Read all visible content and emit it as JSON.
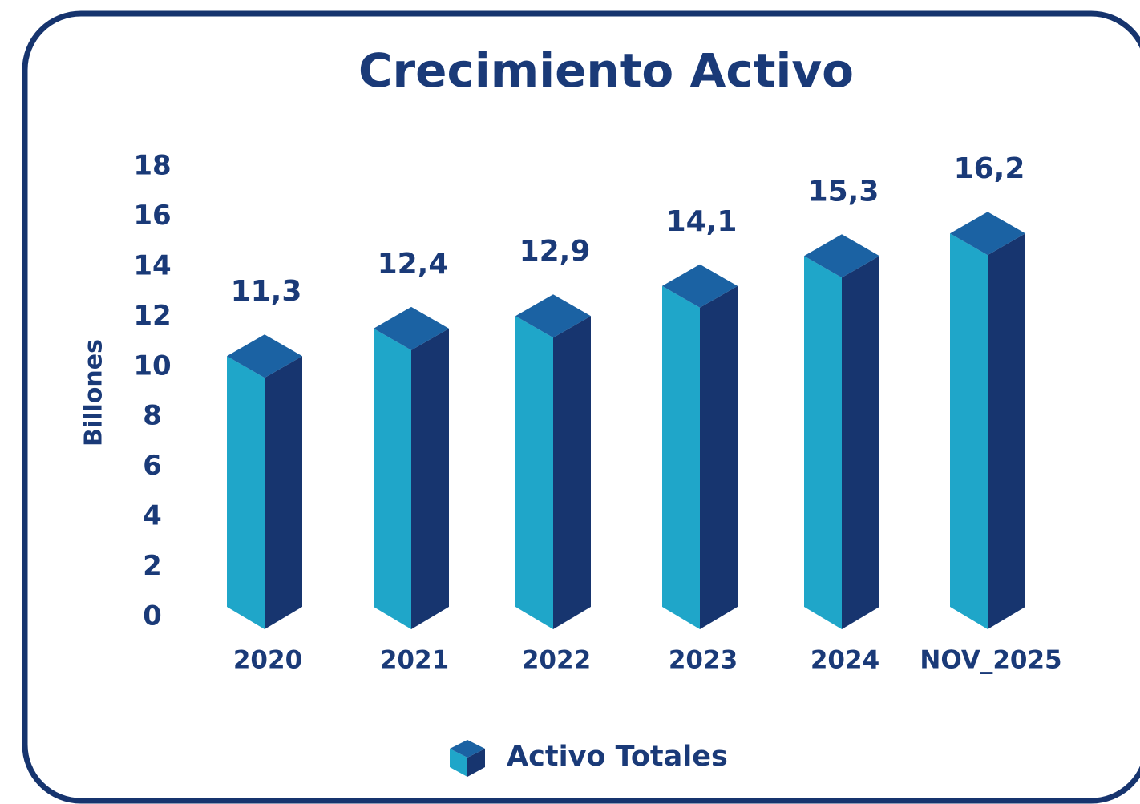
{
  "chart_data": {
    "type": "bar3d",
    "title": "Crecimiento Activo",
    "y_label": "Billones",
    "categories": [
      "2020",
      "2021",
      "2022",
      "2023",
      "2024",
      "NOV_2025"
    ],
    "series": [
      {
        "name": "Activo Totales",
        "color": "#1fa6c9",
        "values": [
          11.3,
          12.4,
          12.9,
          14.1,
          15.3,
          16.2
        ],
        "value_labels": [
          "11,3",
          "12,4",
          "12,9",
          "14,1",
          "15,3",
          "16,2"
        ]
      }
    ],
    "ylim": [
      0,
      18
    ],
    "yticks": [
      0,
      2,
      4,
      6,
      8,
      10,
      12,
      14,
      16,
      18
    ],
    "grid": false,
    "legend": "bottom"
  }
}
